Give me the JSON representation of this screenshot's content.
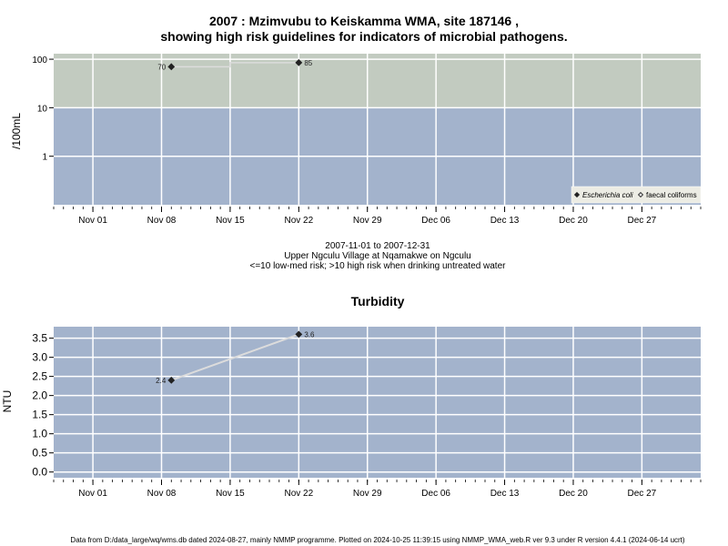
{
  "title_line1": "2007 : Mzimvubu to Keiskamma WMA, site 187146 ,",
  "title_line2": "showing high risk guidelines for indicators of microbial pathogens.",
  "caption": {
    "date_range": "2007-11-01 to 2007-12-31",
    "site": "Upper Ngculu Village at Nqamakwe on Ngculu",
    "guideline": "<=10 low-med risk; >10 high risk when drinking untreated water"
  },
  "footer": "Data from D:/data_large/wq/wms.db dated 2024-08-27, mainly NMMP programme. Plotted on 2024-10-25 11:39:15 using NMMP_WMA_web.R ver 9.3 under R version 4.4.1 (2024-06-14 ucrt)",
  "colors": {
    "high_risk_band": "#c2cbc0",
    "low_risk_band": "#a3b3cc",
    "grid": "#ffffff",
    "series_line": "#dcdcdc",
    "marker": "#222222"
  },
  "chart_data": [
    {
      "type": "line",
      "ylabel": "/100mL",
      "y_scale": "log",
      "ylim": [
        0.1,
        130
      ],
      "y_ticks": [
        1,
        10,
        100
      ],
      "y_tick_labels": [
        "1",
        "10",
        "100"
      ],
      "x_range": [
        "2007-10-28",
        "2008-01-02"
      ],
      "x_ticks": [
        "2007-11-01",
        "2007-11-08",
        "2007-11-15",
        "2007-11-22",
        "2007-11-29",
        "2007-12-06",
        "2007-12-13",
        "2007-12-20",
        "2007-12-27"
      ],
      "x_tick_labels": [
        "Nov 01",
        "Nov 08",
        "Nov 15",
        "Nov 22",
        "Nov 29",
        "Dec 06",
        "Dec 13",
        "Dec 20",
        "Dec 27"
      ],
      "bands": [
        {
          "from": 10,
          "to": 130,
          "meaning": "high risk"
        },
        {
          "from": 0.1,
          "to": 10,
          "meaning": "low-med risk"
        }
      ],
      "grid": true,
      "legend_position": "bottom-right",
      "series": [
        {
          "name": "Escherichia coli",
          "marker": "filled-diamond",
          "x": [
            "2007-11-09",
            "2007-11-22"
          ],
          "y": [
            70,
            85
          ],
          "labels": [
            "70",
            "85"
          ]
        },
        {
          "name": "faecal coliforms",
          "marker": "open-diamond",
          "x": [],
          "y": [],
          "labels": []
        }
      ]
    },
    {
      "type": "line",
      "title": "Turbidity",
      "ylabel": "NTU",
      "ylim": [
        -0.15,
        3.8
      ],
      "y_ticks": [
        0,
        0.5,
        1,
        1.5,
        2,
        2.5,
        3,
        3.5
      ],
      "y_tick_labels": [
        "0.0",
        "0.5",
        "1.0",
        "1.5",
        "2.0",
        "2.5",
        "3.0",
        "3.5"
      ],
      "x_range": [
        "2007-10-28",
        "2008-01-02"
      ],
      "x_ticks": [
        "2007-11-01",
        "2007-11-08",
        "2007-11-15",
        "2007-11-22",
        "2007-11-29",
        "2007-12-06",
        "2007-12-13",
        "2007-12-20",
        "2007-12-27"
      ],
      "x_tick_labels": [
        "Nov 01",
        "Nov 08",
        "Nov 15",
        "Nov 22",
        "Nov 29",
        "Dec 06",
        "Dec 13",
        "Dec 20",
        "Dec 27"
      ],
      "grid": true,
      "series": [
        {
          "name": "",
          "marker": "filled-diamond",
          "x": [
            "2007-11-09",
            "2007-11-22"
          ],
          "y": [
            2.4,
            3.6
          ],
          "labels": [
            "2.4",
            "3.6"
          ]
        }
      ]
    }
  ]
}
